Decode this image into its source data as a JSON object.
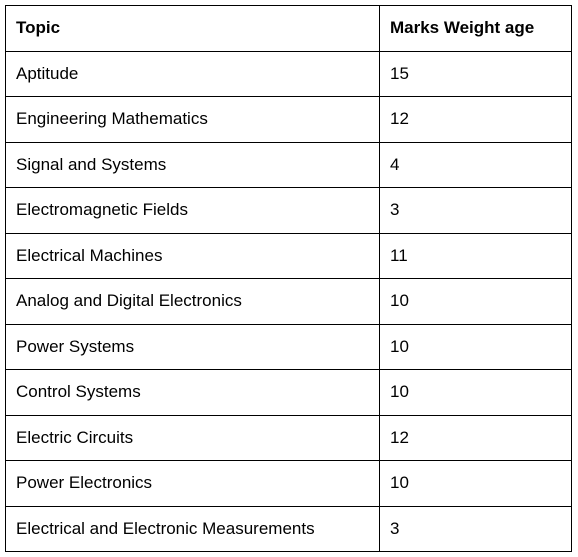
{
  "table": {
    "headers": [
      "Topic",
      "Marks Weight age"
    ],
    "rows": [
      {
        "topic": "Aptitude",
        "marks": "15"
      },
      {
        "topic": "Engineering Mathematics",
        "marks": "12"
      },
      {
        "topic": "Signal and Systems",
        "marks": "4"
      },
      {
        "topic": "Electromagnetic Fields",
        "marks": "3"
      },
      {
        "topic": "Electrical Machines",
        "marks": "11"
      },
      {
        "topic": "Analog and Digital Electronics",
        "marks": "10"
      },
      {
        "topic": "Power Systems",
        "marks": "10"
      },
      {
        "topic": "Control Systems",
        "marks": "10"
      },
      {
        "topic": "Electric Circuits",
        "marks": "12"
      },
      {
        "topic": "Power Electronics",
        "marks": "10"
      },
      {
        "topic": "Electrical and Electronic Measurements",
        "marks": "3"
      }
    ]
  }
}
